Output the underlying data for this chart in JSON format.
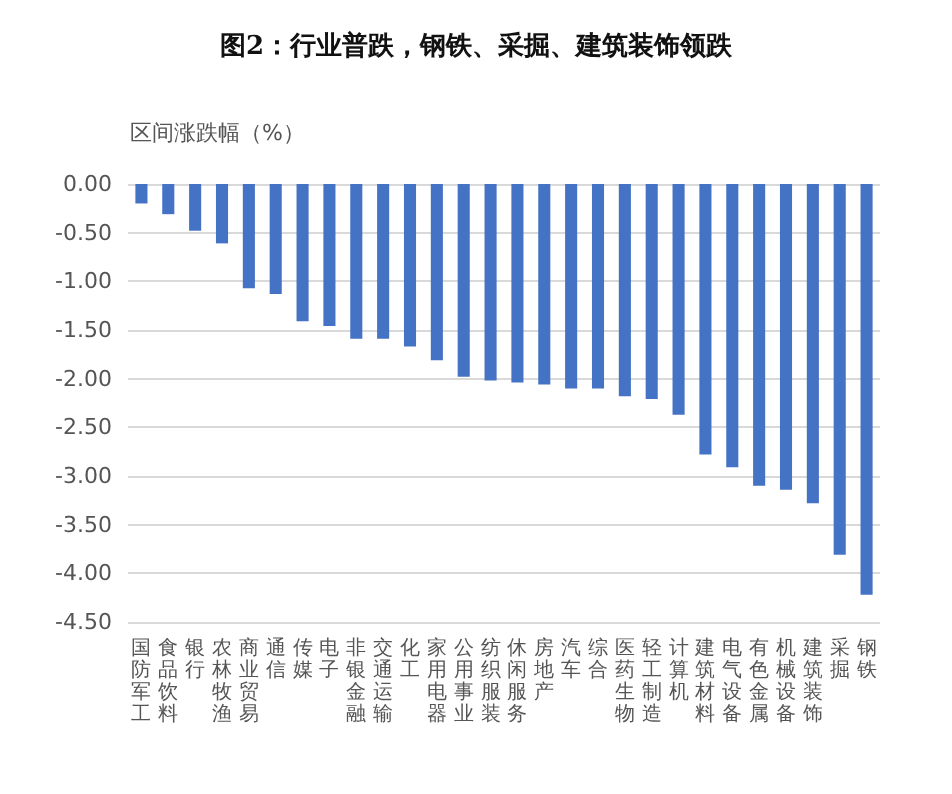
{
  "chart_data": {
    "type": "bar",
    "title": "图2：行业普跌，钢铁、采掘、建筑装饰领跌",
    "ylabel": "区间涨跌幅（%）",
    "categories": [
      "国防军工",
      "食品饮料",
      "银行",
      "农林牧渔",
      "商业贸易",
      "通信",
      "传媒",
      "电子",
      "非银金融",
      "交通运输",
      "化工",
      "家用电器",
      "公用事业",
      "纺织服装",
      "休闲服务",
      "房地产",
      "汽车",
      "综合",
      "医药生物",
      "轻工制造",
      "计算机",
      "建筑材料",
      "电气设备",
      "有色金属",
      "机械设备",
      "建筑装饰",
      "采掘",
      "钢铁"
    ],
    "values": [
      -0.2,
      -0.31,
      -0.48,
      -0.61,
      -1.07,
      -1.13,
      -1.41,
      -1.46,
      -1.59,
      -1.59,
      -1.67,
      -1.81,
      -1.98,
      -2.02,
      -2.04,
      -2.06,
      -2.1,
      -2.1,
      -2.18,
      -2.21,
      -2.37,
      -2.78,
      -2.91,
      -3.1,
      -3.14,
      -3.28,
      -3.81,
      -4.22
    ],
    "color": "#4472c4",
    "ylim": [
      -4.5,
      0
    ],
    "yticks": [
      {
        "value": 0,
        "label": "0.00"
      },
      {
        "value": -0.5,
        "label": "-0.50"
      },
      {
        "value": -1,
        "label": "-1.00"
      },
      {
        "value": -1.5,
        "label": "-1.50"
      },
      {
        "value": -2,
        "label": "-2.00"
      },
      {
        "value": -2.5,
        "label": "-2.50"
      },
      {
        "value": -3,
        "label": "-3.00"
      },
      {
        "value": -3.5,
        "label": "-3.50"
      },
      {
        "value": -4,
        "label": "-4.00"
      },
      {
        "value": -4.5,
        "label": "-4.50"
      }
    ],
    "grid": "y"
  }
}
